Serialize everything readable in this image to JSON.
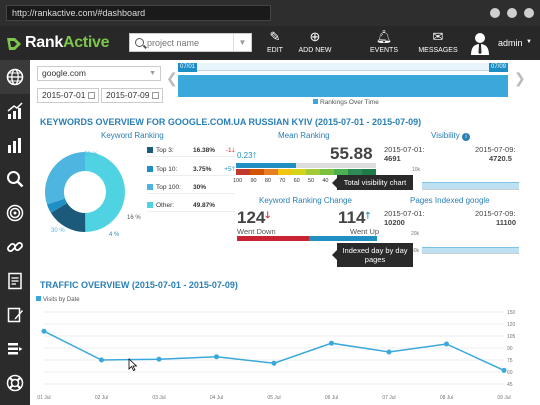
{
  "browser": {
    "url": "http://rankactive.com/#dashboard"
  },
  "header": {
    "logo_a": "Rank",
    "logo_b": "Active",
    "search_placeholder": "project name",
    "nav": [
      {
        "label": "EDIT",
        "icon": "edit-icon"
      },
      {
        "label": "ADD NEW",
        "icon": "add-new-icon"
      },
      {
        "label": "EVENTS",
        "icon": "bell-icon"
      },
      {
        "label": "MESSAGES",
        "icon": "envelope-icon"
      }
    ],
    "user": "admin"
  },
  "filters": {
    "engine": "google.com",
    "date_from": "2015-07-01",
    "date_to": "2015-07-09"
  },
  "timeline": {
    "start": "07/01",
    "end": "07/09",
    "legend": "Rankings Over Time"
  },
  "keywords_overview": {
    "title": "KEYWORDS OVERVIEW FOR GOOGLE.COM.UA RUSSIAN KYIV (2015-07-01 - 2015-07-09)",
    "keyword_ranking": {
      "title": "Keyword Ranking",
      "pie_labels": [
        "50 %",
        "16 %",
        "4 %",
        "30 %"
      ],
      "rows": [
        {
          "label": "Top 3:",
          "value": "16.38%",
          "change": "-1",
          "dir": "down",
          "color": "#1b5a7a"
        },
        {
          "label": "Top 10:",
          "value": "3.75%",
          "change": "+5",
          "dir": "up",
          "color": "#1f8fc4"
        },
        {
          "label": "Top 100:",
          "value": "30%",
          "change": "",
          "dir": "",
          "color": "#4eb5e0"
        },
        {
          "label": "Other:",
          "value": "49.87%",
          "change": "",
          "dir": "",
          "color": "#4fd3e3"
        }
      ]
    },
    "mean_ranking": {
      "title": "Mean Ranking",
      "prev": "0.23",
      "current": "55.88",
      "scale": [
        "100",
        "90",
        "80",
        "70",
        "60",
        "50",
        "40",
        "30",
        "20",
        "10",
        "1"
      ]
    },
    "visibility": {
      "title": "Visibility",
      "from_label": "2015-07-01:",
      "from_value": "4691",
      "to_label": "2015-07-09:",
      "to_value": "4720.5",
      "axis_top": "10k",
      "axis_bottom": "",
      "tooltip": "Total visibility chart"
    },
    "ranking_change": {
      "title": "Keyword Ranking Change",
      "down_value": "124",
      "down_label": "Went Down",
      "up_value": "114",
      "up_label": "Went Up"
    },
    "pages_indexed": {
      "title": "Pages Indexed google",
      "from_label": "2015-07-01:",
      "from_value": "10200",
      "to_label": "2015-07-09:",
      "to_value": "11100",
      "axis_top": "20k",
      "axis_bottom": "40k",
      "tooltip": "Indexed day by day pages"
    }
  },
  "traffic": {
    "title": "TRAFFIC OVERVIEW (2015-07-01 - 2015-07-09)",
    "chart_data": {
      "type": "line",
      "title": "",
      "series": [
        {
          "name": "Visits by Date",
          "values": [
            126,
            90,
            91,
            94,
            86,
            111,
            100,
            110,
            77
          ]
        }
      ],
      "categories": [
        "01 Jul",
        "02 Jul",
        "03 Jul",
        "04 Jul",
        "05 Jul",
        "06 Jul",
        "07 Jul",
        "08 Jul",
        "09 Jul"
      ],
      "y_ticks": [
        "150",
        "120",
        "105",
        "90",
        "75",
        "60",
        "45"
      ],
      "ylim": [
        60,
        150
      ],
      "grid": true,
      "legend": "top-left"
    }
  }
}
